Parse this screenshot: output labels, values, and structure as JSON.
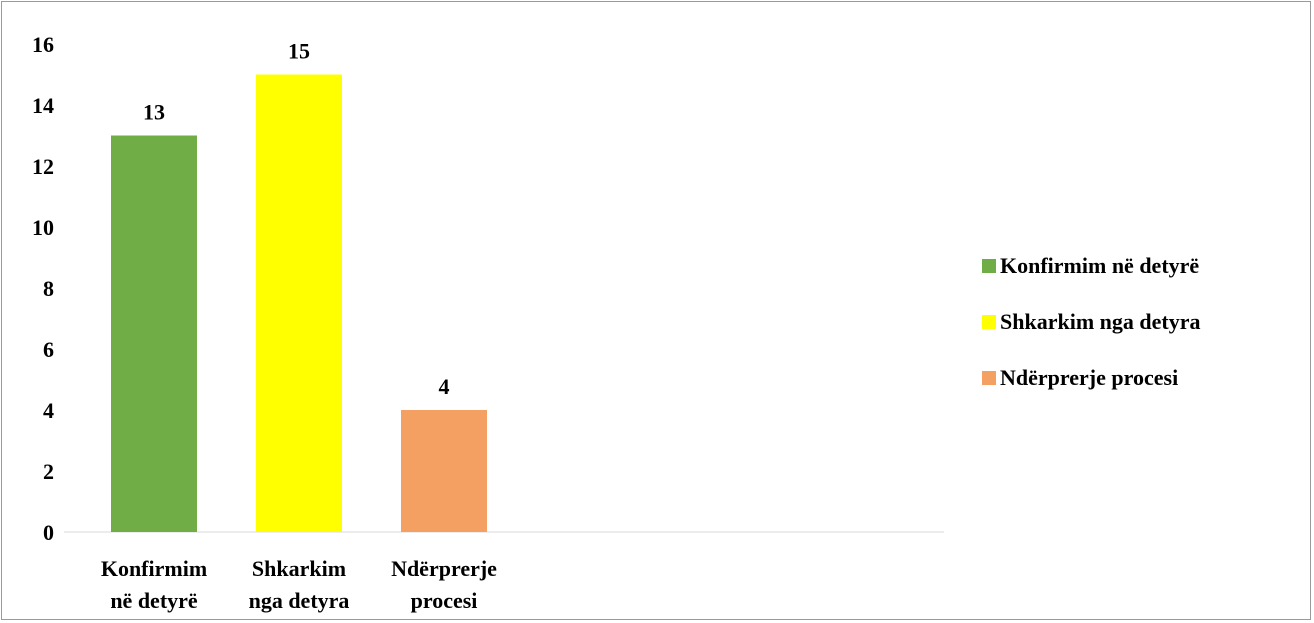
{
  "chart_data": {
    "type": "bar",
    "categories": [
      "Konfirmim në detyrë",
      "Shkarkim nga detyra",
      "Ndërprerje procesi"
    ],
    "category_labels": [
      [
        "Konfirmim",
        "në detyrë"
      ],
      [
        "Shkarkim",
        "nga detyra"
      ],
      [
        "Ndërprerje",
        "procesi"
      ]
    ],
    "values": [
      13,
      15,
      4
    ],
    "colors": [
      "#70ad47",
      "#ffff00",
      "#f4a063"
    ],
    "ylim": [
      0,
      16
    ],
    "yticks": [
      0,
      2,
      4,
      6,
      8,
      10,
      12,
      14,
      16
    ],
    "grid": false,
    "legend_position": "right",
    "data_labels": true
  },
  "legend": {
    "items": [
      {
        "label": "Konfirmim në detyrë",
        "color": "#70ad47"
      },
      {
        "label": "Shkarkim nga detyra",
        "color": "#ffff00"
      },
      {
        "label": "Ndërprerje procesi",
        "color": "#f4a063"
      }
    ]
  }
}
